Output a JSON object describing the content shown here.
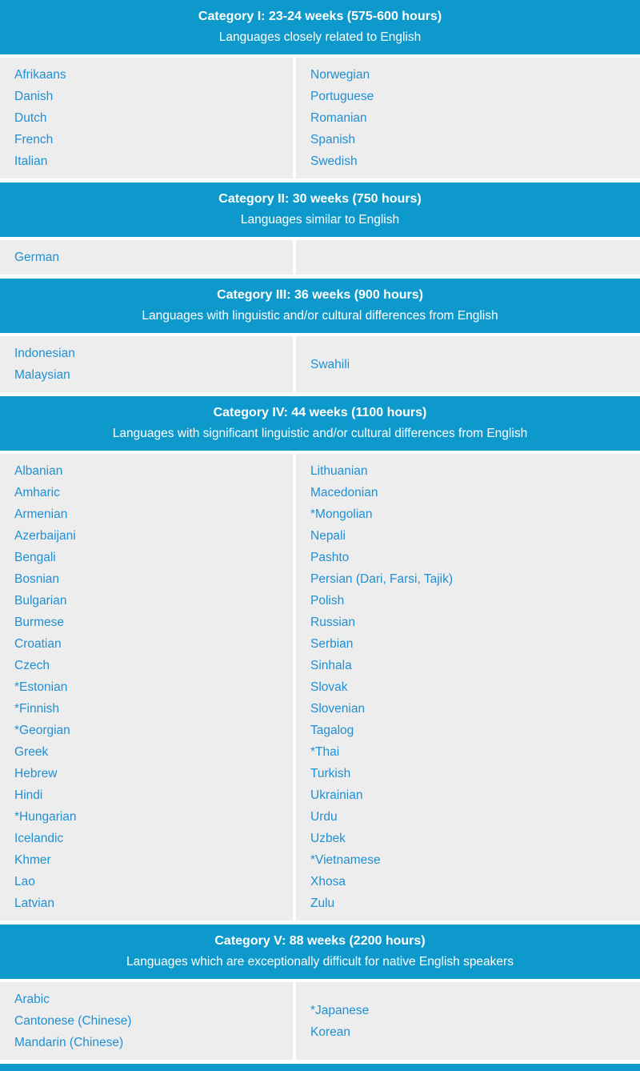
{
  "colors": {
    "header_background": "#0e99cd",
    "header_text": "#ffffff",
    "content_background": "#ededed",
    "language_text": "#1f90d3",
    "page_background": "#ffffff"
  },
  "categories": [
    {
      "title": "Category I: 23-24 weeks (575-600 hours)",
      "subtitle": "Languages closely related to English",
      "left": [
        "Afrikaans",
        "Danish",
        "Dutch",
        "French",
        "Italian"
      ],
      "right": [
        "Norwegian",
        "Portuguese",
        "Romanian",
        "Spanish",
        "Swedish"
      ]
    },
    {
      "title": "Category II: 30 weeks (750 hours)",
      "subtitle": "Languages similar to English",
      "left": [
        "German"
      ],
      "right": []
    },
    {
      "title": "Category III: 36 weeks (900 hours)",
      "subtitle": "Languages with linguistic and/or cultural differences from English",
      "left": [
        "Indonesian",
        "Malaysian"
      ],
      "right": [
        "Swahili"
      ]
    },
    {
      "title": "Category IV: 44 weeks (1100 hours)",
      "subtitle": "Languages with significant linguistic and/or cultural differences from English",
      "left": [
        "Albanian",
        "Amharic",
        "Armenian",
        "Azerbaijani",
        "Bengali",
        "Bosnian",
        "Bulgarian",
        "Burmese",
        "Croatian",
        "Czech",
        "*Estonian",
        "*Finnish",
        "*Georgian",
        "Greek",
        "Hebrew",
        "Hindi",
        "*Hungarian",
        "Icelandic",
        "Khmer",
        "Lao",
        "Latvian"
      ],
      "right": [
        "Lithuanian",
        "Macedonian",
        "*Mongolian",
        "Nepali",
        "Pashto",
        "Persian (Dari, Farsi, Tajik)",
        "Polish",
        "Russian",
        "Serbian",
        "Sinhala",
        "Slovak",
        "Slovenian",
        "Tagalog",
        "*Thai",
        "Turkish",
        "Ukrainian",
        "Urdu",
        "Uzbek",
        "*Vietnamese",
        "Xhosa",
        "Zulu"
      ]
    },
    {
      "title": "Category V: 88 weeks (2200 hours)",
      "subtitle": "Languages which are exceptionally difficult for native English speakers",
      "left": [
        "Arabic",
        "Cantonese (Chinese)",
        "Mandarin (Chinese)"
      ],
      "right": [
        "*Japanese",
        "Korean"
      ]
    }
  ]
}
